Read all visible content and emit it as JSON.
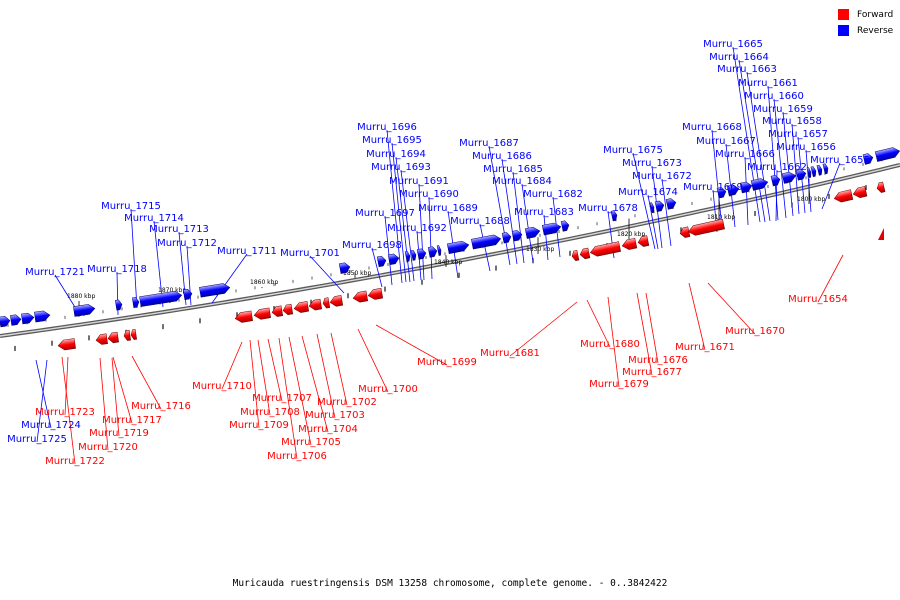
{
  "legend": {
    "forward_label": "Forward",
    "reverse_label": "Reverse",
    "forward_color": "#ff0000",
    "reverse_color": "#0000ff"
  },
  "caption": "Muricauda ruestringensis DSM 13258 chromosome, complete genome. - 0..3842422",
  "scale_labels": [
    "1880 kbp",
    "1870 kbp",
    "1860 kbp",
    "1850 kbp",
    "1840 kbp",
    "1830 kbp",
    "1820 kbp",
    "1810 kbp",
    "1800 kbp"
  ],
  "reverse_genes": [
    "Murru_1665",
    "Murru_1664",
    "Murru_1663",
    "Murru_1661",
    "Murru_1660",
    "Murru_1659",
    "Murru_1658",
    "Murru_1657",
    "Murru_1656",
    "Murru_1655",
    "Murru_1668",
    "Murru_1667",
    "Murru_1666",
    "Murru_1662",
    "Murru_1675",
    "Murru_1673",
    "Murru_1672",
    "Murru_1674",
    "Murru_1669",
    "Murru_1678",
    "Murru_1687",
    "Murru_1686",
    "Murru_1685",
    "Murru_1684",
    "Murru_1682",
    "Murru_1683",
    "Murru_1688",
    "Murru_1696",
    "Murru_1695",
    "Murru_1694",
    "Murru_1693",
    "Murru_1691",
    "Murru_1690",
    "Murru_1689",
    "Murru_1697",
    "Murru_1692",
    "Murru_1698",
    "Murru_1701",
    "Murru_1711",
    "Murru_1715",
    "Murru_1714",
    "Murru_1713",
    "Murru_1712",
    "Murru_1718",
    "Murru_1721",
    "Murru_1724",
    "Murru_1725"
  ],
  "forward_genes": [
    "Murru_1654",
    "Murru_1670",
    "Murru_1671",
    "Murru_1676",
    "Murru_1677",
    "Murru_1679",
    "Murru_1680",
    "Murru_1681",
    "Murru_1699",
    "Murru_1700",
    "Murru_1702",
    "Murru_1703",
    "Murru_1704",
    "Murru_1705",
    "Murru_1706",
    "Murru_1707",
    "Murru_1708",
    "Murru_1709",
    "Murru_1710",
    "Murru_1716",
    "Murru_1717",
    "Murru_1719",
    "Murru_1720",
    "Murru_1722",
    "Murru_1723"
  ]
}
